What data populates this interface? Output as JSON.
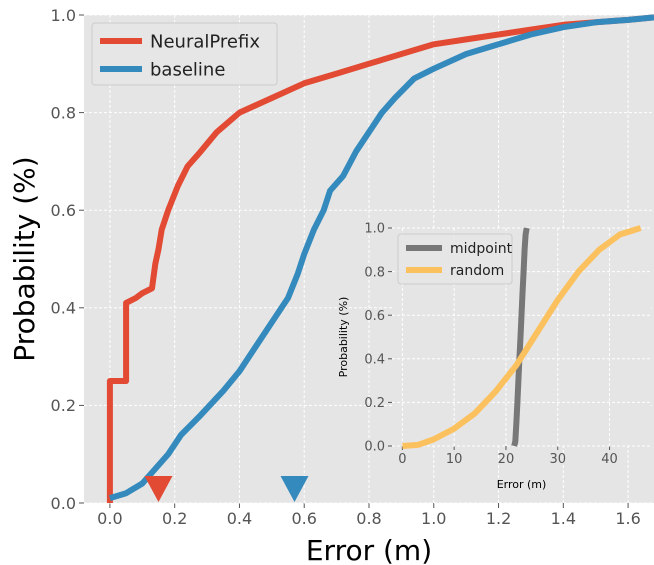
{
  "colors": {
    "panel_bg": "#e5e5e5",
    "grid": "#ffffff",
    "neural": "#e24a33",
    "baseline": "#348abd",
    "midpoint": "#777777",
    "random": "#fbc15e"
  },
  "chart_data": [
    {
      "type": "line",
      "subtype": "cdf",
      "xlabel": "Error (m)",
      "ylabel": "Probability (%)",
      "xlim": [
        -0.08,
        1.68
      ],
      "ylim": [
        0,
        1.0
      ],
      "xticks": [
        "0.0",
        "0.2",
        "0.4",
        "0.6",
        "0.8",
        "1.0",
        "1.2",
        "1.4",
        "1.6"
      ],
      "yticks": [
        "0.0",
        "0.2",
        "0.4",
        "0.6",
        "0.8",
        "1.0"
      ],
      "grid": true,
      "legend": "top-left",
      "series": [
        {
          "name": "NeuralPrefix",
          "color": "#e24a33",
          "points": [
            [
              0.0,
              0.0
            ],
            [
              0.0,
              0.25
            ],
            [
              0.05,
              0.25
            ],
            [
              0.05,
              0.41
            ],
            [
              0.08,
              0.42
            ],
            [
              0.1,
              0.43
            ],
            [
              0.13,
              0.44
            ],
            [
              0.14,
              0.49
            ],
            [
              0.15,
              0.52
            ],
            [
              0.16,
              0.56
            ],
            [
              0.18,
              0.6
            ],
            [
              0.21,
              0.65
            ],
            [
              0.24,
              0.69
            ],
            [
              0.28,
              0.72
            ],
            [
              0.33,
              0.76
            ],
            [
              0.4,
              0.8
            ],
            [
              0.5,
              0.83
            ],
            [
              0.6,
              0.86
            ],
            [
              0.7,
              0.88
            ],
            [
              0.8,
              0.9
            ],
            [
              0.9,
              0.92
            ],
            [
              1.0,
              0.94
            ],
            [
              1.1,
              0.95
            ],
            [
              1.2,
              0.96
            ],
            [
              1.3,
              0.97
            ],
            [
              1.4,
              0.98
            ],
            [
              1.5,
              0.985
            ],
            [
              1.6,
              0.99
            ],
            [
              1.68,
              0.995
            ]
          ]
        },
        {
          "name": "baseline",
          "color": "#348abd",
          "points": [
            [
              0.0,
              0.01
            ],
            [
              0.05,
              0.02
            ],
            [
              0.1,
              0.04
            ],
            [
              0.14,
              0.07
            ],
            [
              0.18,
              0.1
            ],
            [
              0.22,
              0.14
            ],
            [
              0.28,
              0.18
            ],
            [
              0.35,
              0.23
            ],
            [
              0.4,
              0.27
            ],
            [
              0.45,
              0.32
            ],
            [
              0.5,
              0.37
            ],
            [
              0.55,
              0.42
            ],
            [
              0.58,
              0.47
            ],
            [
              0.6,
              0.51
            ],
            [
              0.63,
              0.56
            ],
            [
              0.66,
              0.6
            ],
            [
              0.68,
              0.64
            ],
            [
              0.72,
              0.67
            ],
            [
              0.76,
              0.72
            ],
            [
              0.8,
              0.76
            ],
            [
              0.84,
              0.8
            ],
            [
              0.88,
              0.83
            ],
            [
              0.94,
              0.87
            ],
            [
              1.0,
              0.89
            ],
            [
              1.1,
              0.92
            ],
            [
              1.2,
              0.94
            ],
            [
              1.3,
              0.96
            ],
            [
              1.4,
              0.975
            ],
            [
              1.5,
              0.985
            ],
            [
              1.6,
              0.99
            ],
            [
              1.68,
              0.995
            ]
          ]
        }
      ],
      "markers": [
        {
          "x": 0.15,
          "color": "#e24a33",
          "shape": "down-triangle"
        },
        {
          "x": 0.57,
          "color": "#348abd",
          "shape": "down-triangle"
        }
      ]
    },
    {
      "type": "line",
      "subtype": "cdf-inset",
      "xlabel": "Error (m)",
      "ylabel": "Probability (%)",
      "xlim": [
        -2,
        48
      ],
      "ylim": [
        0,
        1.0
      ],
      "xticks": [
        "0",
        "10",
        "20",
        "30",
        "40"
      ],
      "yticks": [
        "0.0",
        "0.2",
        "0.4",
        "0.6",
        "0.8",
        "1.0"
      ],
      "grid": true,
      "legend": "top-left",
      "series": [
        {
          "name": "midpoint",
          "color": "#777777",
          "points": [
            [
              21.6,
              0.0
            ],
            [
              21.8,
              0.02
            ],
            [
              22.0,
              0.1
            ],
            [
              22.2,
              0.2
            ],
            [
              22.4,
              0.3
            ],
            [
              22.6,
              0.4
            ],
            [
              22.8,
              0.5
            ],
            [
              23.0,
              0.6
            ],
            [
              23.2,
              0.7
            ],
            [
              23.4,
              0.8
            ],
            [
              23.6,
              0.9
            ],
            [
              23.8,
              0.97
            ],
            [
              24.0,
              1.0
            ]
          ]
        },
        {
          "name": "random",
          "color": "#fbc15e",
          "points": [
            [
              0,
              0.0
            ],
            [
              3,
              0.005
            ],
            [
              6,
              0.03
            ],
            [
              10,
              0.08
            ],
            [
              14,
              0.15
            ],
            [
              18,
              0.25
            ],
            [
              22,
              0.37
            ],
            [
              26,
              0.52
            ],
            [
              30,
              0.67
            ],
            [
              34,
              0.8
            ],
            [
              38,
              0.9
            ],
            [
              42,
              0.97
            ],
            [
              46,
              1.0
            ]
          ]
        }
      ]
    }
  ]
}
